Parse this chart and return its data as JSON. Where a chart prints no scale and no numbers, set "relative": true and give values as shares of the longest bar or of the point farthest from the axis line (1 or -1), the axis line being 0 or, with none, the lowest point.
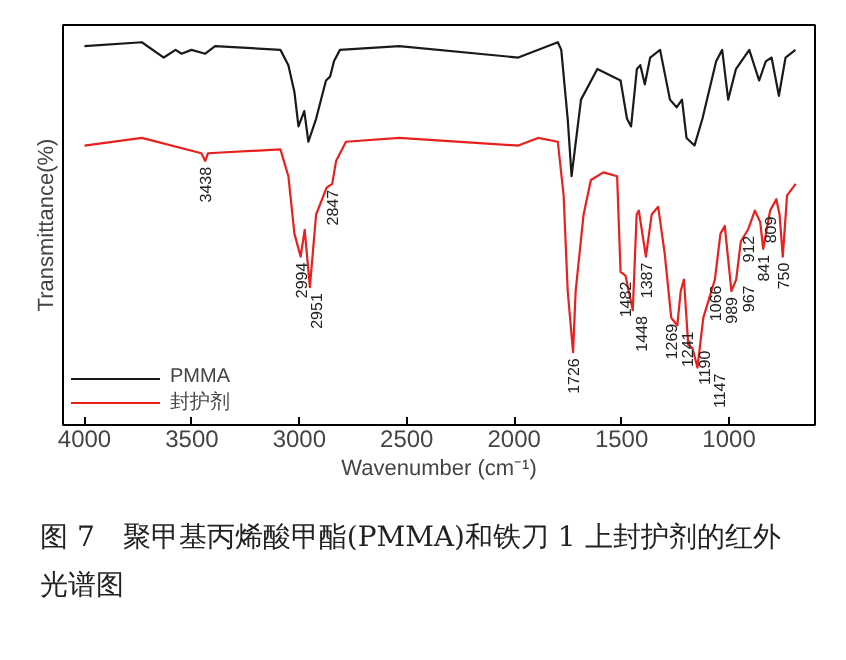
{
  "chart_data": {
    "type": "line",
    "relative": true,
    "xlabel": "Wavenumber (cm⁻¹)",
    "ylabel": "Transmittance(%)",
    "xlim": [
      4100,
      600
    ],
    "xticks": [
      4000,
      3500,
      3000,
      2500,
      2000,
      1500,
      1000
    ],
    "grid": false,
    "legend": "bottom left",
    "marker": "none",
    "line_style": "solid",
    "series": [
      {
        "name": "PMMA",
        "color": "#1a1a1a",
        "x": [
          4000,
          3733,
          3631,
          3576,
          3548,
          3502,
          3438,
          3392,
          3088,
          3051,
          3023,
          3004,
          2977,
          2958,
          2922,
          2876,
          2857,
          2839,
          2811,
          2535,
          1981,
          1797,
          1781,
          1751,
          1733,
          1689,
          1613,
          1505,
          1475,
          1456,
          1429,
          1413,
          1392,
          1367,
          1321,
          1275,
          1244,
          1219,
          1198,
          1161,
          1124,
          1060,
          1032,
          1004,
          968,
          906,
          860,
          829,
          802,
          768,
          737,
          691
        ],
        "values": [
          0.99,
          1.0,
          0.96,
          0.98,
          0.97,
          0.98,
          0.97,
          0.99,
          0.98,
          0.94,
          0.87,
          0.78,
          0.82,
          0.74,
          0.8,
          0.9,
          0.91,
          0.95,
          0.98,
          0.99,
          0.96,
          1.0,
          0.98,
          0.8,
          0.65,
          0.85,
          0.93,
          0.9,
          0.8,
          0.78,
          0.93,
          0.94,
          0.89,
          0.96,
          0.98,
          0.85,
          0.83,
          0.85,
          0.75,
          0.73,
          0.8,
          0.95,
          0.98,
          0.85,
          0.93,
          0.98,
          0.9,
          0.95,
          0.96,
          0.86,
          0.96,
          0.98
        ]
      },
      {
        "name": "封护剂",
        "color": "#e8201e",
        "x": [
          4000,
          3733,
          3456,
          3438,
          3425,
          3088,
          3051,
          3023,
          2994,
          2975,
          2951,
          2922,
          2873,
          2847,
          2829,
          2783,
          2535,
          1981,
          1889,
          1797,
          1770,
          1751,
          1726,
          1714,
          1677,
          1643,
          1585,
          1521,
          1505,
          1482,
          1448,
          1430,
          1420,
          1387,
          1360,
          1330,
          1300,
          1269,
          1241,
          1225,
          1210,
          1190,
          1170,
          1147,
          1120,
          1066,
          1040,
          1020,
          989,
          967,
          945,
          912,
          880,
          855,
          841,
          809,
          780,
          765,
          750,
          730,
          690
        ],
        "values": [
          0.73,
          0.75,
          0.71,
          0.69,
          0.71,
          0.72,
          0.65,
          0.5,
          0.44,
          0.51,
          0.36,
          0.55,
          0.62,
          0.63,
          0.69,
          0.74,
          0.75,
          0.73,
          0.75,
          0.74,
          0.6,
          0.35,
          0.19,
          0.35,
          0.55,
          0.64,
          0.66,
          0.65,
          0.4,
          0.39,
          0.3,
          0.55,
          0.56,
          0.44,
          0.55,
          0.57,
          0.45,
          0.28,
          0.26,
          0.35,
          0.38,
          0.21,
          0.2,
          0.15,
          0.28,
          0.38,
          0.5,
          0.52,
          0.35,
          0.38,
          0.48,
          0.51,
          0.56,
          0.53,
          0.46,
          0.56,
          0.59,
          0.55,
          0.44,
          0.6,
          0.63
        ]
      }
    ],
    "annotations": [
      {
        "text": "3438",
        "x": 3438,
        "y": 0.69
      },
      {
        "text": "2994",
        "x": 2994,
        "y": 0.44
      },
      {
        "text": "2951",
        "x": 2951,
        "y": 0.36
      },
      {
        "text": "2847",
        "x": 2847,
        "y": 0.63
      },
      {
        "text": "1726",
        "x": 1726,
        "y": 0.19
      },
      {
        "text": "1482",
        "x": 1482,
        "y": 0.39
      },
      {
        "text": "1448",
        "x": 1448,
        "y": 0.3
      },
      {
        "text": "1387",
        "x": 1387,
        "y": 0.44
      },
      {
        "text": "1269",
        "x": 1269,
        "y": 0.28
      },
      {
        "text": "1241",
        "x": 1241,
        "y": 0.26
      },
      {
        "text": "1190",
        "x": 1190,
        "y": 0.21
      },
      {
        "text": "1147",
        "x": 1147,
        "y": 0.15
      },
      {
        "text": "1066",
        "x": 1066,
        "y": 0.38
      },
      {
        "text": "989",
        "x": 989,
        "y": 0.35
      },
      {
        "text": "967",
        "x": 967,
        "y": 0.38
      },
      {
        "text": "912",
        "x": 912,
        "y": 0.51
      },
      {
        "text": "841",
        "x": 841,
        "y": 0.46
      },
      {
        "text": "809",
        "x": 809,
        "y": 0.56
      },
      {
        "text": "750",
        "x": 750,
        "y": 0.44
      },
      "图 7　聚甲基丙烯酸甲酯(PMMA)和铁刀 1 上封护剂的红外光谱图"
    ]
  }
}
